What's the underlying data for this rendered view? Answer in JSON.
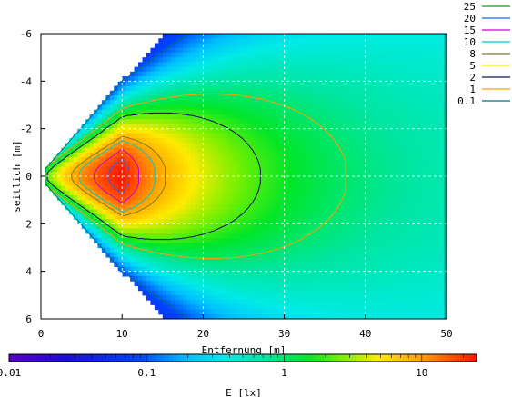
{
  "chart_data": {
    "type": "heatmap",
    "title": "",
    "xlabel": "Entfernung [m]",
    "ylabel": "seitlich [m]",
    "xlim": [
      0,
      50
    ],
    "ylim": [
      6,
      -6
    ],
    "x_ticks": [
      "0",
      "10",
      "20",
      "30",
      "40",
      "50"
    ],
    "y_ticks": [
      "-6",
      "-4",
      "-2",
      "0",
      "2",
      "4",
      "6"
    ],
    "grid": true,
    "colorbar": {
      "label": "E [lx]",
      "scale": "log",
      "range": [
        0.01,
        25
      ],
      "tick_labels": [
        "0.01",
        "0.1",
        "1",
        "10"
      ]
    },
    "legend": {
      "placement": "top-right",
      "entries": [
        {
          "label": "25",
          "color": "#00aa00"
        },
        {
          "label": "20",
          "color": "#1e64ff"
        },
        {
          "label": "15",
          "color": "#cc00cc"
        },
        {
          "label": "10",
          "color": "#00c8c8"
        },
        {
          "label": "8",
          "color": "#7a7a2a"
        },
        {
          "label": "5",
          "color": "#f0f000"
        },
        {
          "label": "2",
          "color": "#101060"
        },
        {
          "label": "1",
          "color": "#ffa000"
        },
        {
          "label": "0.1",
          "color": "#007070"
        }
      ]
    },
    "contour_levels": [
      25,
      20,
      15,
      10,
      8,
      5,
      2,
      1,
      0.1
    ],
    "field": {
      "peak_lx": 25,
      "peak_at": [
        10,
        0
      ],
      "min_lx": 0.01,
      "beam_start_x": 0.5,
      "beam_edge_at_x16_y": 6,
      "data_extent_x": [
        0,
        50
      ]
    }
  }
}
